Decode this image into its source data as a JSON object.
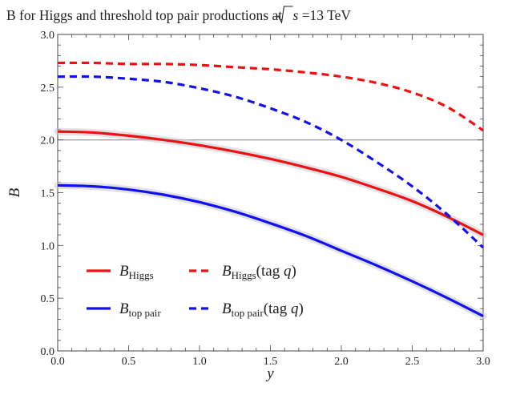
{
  "chart_data": {
    "type": "line",
    "title_prefix": "B for Higgs and threshold top pair productions at",
    "title_sqrt_var": "s",
    "title_suffix": "=13 TeV",
    "xlabel": "y",
    "ylabel": "B",
    "xlim": [
      0.0,
      3.0
    ],
    "ylim": [
      0.0,
      3.0
    ],
    "xticks": [
      "0.0",
      "0.5",
      "1.0",
      "1.5",
      "2.0",
      "2.5",
      "3.0"
    ],
    "yticks": [
      "0.0",
      "0.5",
      "1.0",
      "1.5",
      "2.0",
      "2.5",
      "3.0"
    ],
    "reference_line": 2.0,
    "legend_position": "lower-left",
    "series": [
      {
        "key": "higgs",
        "name_main": "B",
        "name_sub": "Higgs",
        "name_suffix": "",
        "color": "#ee1111",
        "dash": "solid",
        "band": true,
        "x": [
          0.0,
          0.25,
          0.5,
          0.75,
          1.0,
          1.25,
          1.5,
          1.75,
          2.0,
          2.25,
          2.5,
          2.75,
          3.0
        ],
        "values": [
          2.08,
          2.07,
          2.04,
          2.0,
          1.95,
          1.89,
          1.82,
          1.74,
          1.65,
          1.54,
          1.42,
          1.27,
          1.1
        ]
      },
      {
        "key": "top",
        "name_main": "B",
        "name_sub": "top pair",
        "name_suffix": "",
        "color": "#1111ee",
        "dash": "solid",
        "band": true,
        "x": [
          0.0,
          0.25,
          0.5,
          0.75,
          1.0,
          1.25,
          1.5,
          1.75,
          2.0,
          2.25,
          2.5,
          2.75,
          3.0
        ],
        "values": [
          1.57,
          1.56,
          1.53,
          1.48,
          1.41,
          1.32,
          1.21,
          1.09,
          0.95,
          0.81,
          0.66,
          0.5,
          0.33
        ]
      },
      {
        "key": "higgs_tag",
        "name_main": "B",
        "name_sub": "Higgs",
        "name_suffix": "(tag q)",
        "color": "#ee1111",
        "dash": "dashed",
        "band": false,
        "x": [
          0.0,
          0.25,
          0.5,
          0.75,
          1.0,
          1.25,
          1.5,
          1.75,
          2.0,
          2.25,
          2.5,
          2.75,
          3.0
        ],
        "values": [
          2.73,
          2.73,
          2.72,
          2.72,
          2.71,
          2.69,
          2.67,
          2.64,
          2.6,
          2.54,
          2.45,
          2.31,
          2.09
        ]
      },
      {
        "key": "top_tag",
        "name_main": "B",
        "name_sub": "top pair",
        "name_suffix": "(tag q)",
        "color": "#1111ee",
        "dash": "dashed",
        "band": false,
        "x": [
          0.0,
          0.25,
          0.5,
          0.75,
          1.0,
          1.25,
          1.5,
          1.75,
          2.0,
          2.25,
          2.5,
          2.75,
          3.0
        ],
        "values": [
          2.6,
          2.6,
          2.58,
          2.55,
          2.49,
          2.41,
          2.3,
          2.17,
          2.0,
          1.79,
          1.56,
          1.29,
          0.98
        ]
      }
    ]
  }
}
